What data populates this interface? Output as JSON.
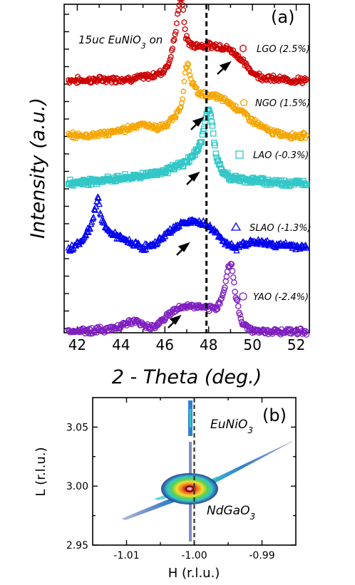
{
  "chart_data": [
    {
      "panel": "(a)",
      "type": "scatter",
      "annotation": {
        "prefix": "15uc EuNiO",
        "sub": "3",
        "suffix": " on"
      },
      "xlabel": "2 - Theta (deg.)",
      "ylabel": "Intensity (a.u.)",
      "xlim": [
        41.4,
        52.6
      ],
      "xticks": [
        "42",
        "44",
        "46",
        "48",
        "50",
        "52"
      ],
      "reference_line_x": 47.9,
      "grid": false,
      "legend_placement": "right, beside each curve",
      "series": [
        {
          "name": "LGO (2.5%)",
          "marker": "hexagon",
          "color": "#cc0000",
          "x": [
            41.6,
            42.5,
            43.5,
            44.5,
            45.3,
            45.9,
            46.2,
            46.45,
            46.65,
            46.78,
            46.95,
            47.2,
            47.6,
            48.0,
            48.4,
            48.9,
            49.3,
            49.7,
            50.1,
            50.6,
            51.2,
            51.8,
            52.4
          ],
          "y": [
            0.05,
            0.05,
            0.06,
            0.07,
            0.1,
            0.16,
            0.28,
            0.6,
            1.05,
            1.12,
            0.62,
            0.5,
            0.5,
            0.5,
            0.5,
            0.46,
            0.38,
            0.24,
            0.13,
            0.08,
            0.06,
            0.05,
            0.05
          ]
        },
        {
          "name": "NGO (1.5%)",
          "marker": "pentagon",
          "color": "#f5a500",
          "x": [
            41.6,
            42.5,
            43.5,
            44.2,
            44.8,
            45.3,
            45.7,
            46.1,
            46.5,
            46.8,
            46.95,
            47.05,
            47.2,
            47.5,
            47.9,
            48.4,
            48.9,
            49.4,
            49.9,
            50.4,
            51.0,
            51.6,
            52.4
          ],
          "y": [
            0.05,
            0.06,
            0.09,
            0.14,
            0.2,
            0.19,
            0.15,
            0.2,
            0.32,
            0.52,
            0.95,
            1.0,
            0.8,
            0.62,
            0.6,
            0.57,
            0.5,
            0.4,
            0.28,
            0.17,
            0.09,
            0.06,
            0.05
          ]
        },
        {
          "name": "LAO (-0.3%)",
          "marker": "square",
          "color": "#33c7c7",
          "x": [
            41.6,
            42.5,
            43.5,
            44.5,
            45.5,
            46.3,
            46.9,
            47.4,
            47.7,
            47.9,
            48.05,
            48.15,
            48.35,
            48.6,
            49.0,
            49.5,
            50.2,
            51.0,
            51.8,
            52.4
          ],
          "y": [
            0.05,
            0.07,
            0.1,
            0.13,
            0.18,
            0.24,
            0.32,
            0.45,
            0.65,
            0.98,
            1.05,
            0.85,
            0.4,
            0.2,
            0.12,
            0.1,
            0.08,
            0.06,
            0.05,
            0.05
          ]
        },
        {
          "name": "SLAO (-1.3%)",
          "marker": "triangle",
          "color": "#0000ee",
          "x": [
            41.6,
            42.2,
            42.6,
            42.85,
            42.95,
            43.1,
            43.5,
            44.2,
            45.0,
            45.4,
            45.8,
            46.3,
            46.8,
            47.3,
            47.9,
            48.4,
            48.8,
            49.2,
            49.6,
            50.2,
            51.0,
            51.8,
            52.4
          ],
          "y": [
            0.05,
            0.18,
            0.38,
            0.7,
            0.85,
            0.48,
            0.3,
            0.18,
            0.08,
            0.1,
            0.2,
            0.34,
            0.44,
            0.46,
            0.42,
            0.28,
            0.14,
            0.06,
            0.14,
            0.16,
            0.12,
            0.1,
            0.08
          ]
        },
        {
          "name": "YAO (-2.4%)",
          "marker": "circle",
          "color": "#7f1fbf",
          "x": [
            41.6,
            42.5,
            43.5,
            44.2,
            44.7,
            45.1,
            45.5,
            46.0,
            46.5,
            47.0,
            47.5,
            48.0,
            48.4,
            48.7,
            48.9,
            49.05,
            49.2,
            49.5,
            50.0,
            50.8,
            51.6,
            52.4
          ],
          "y": [
            0.05,
            0.06,
            0.08,
            0.16,
            0.19,
            0.13,
            0.11,
            0.24,
            0.36,
            0.4,
            0.4,
            0.36,
            0.38,
            0.62,
            0.95,
            1.0,
            0.6,
            0.18,
            0.06,
            0.05,
            0.05,
            0.05
          ]
        }
      ]
    },
    {
      "panel": "(b)",
      "type": "heatmap",
      "xlabel": "H (r.l.u.)",
      "ylabel": "L (r.l.u.)",
      "xlim": [
        -1.015,
        -0.985
      ],
      "ylim": [
        2.95,
        3.075
      ],
      "xticks": [
        "-1.01",
        "-1.00",
        "-0.99"
      ],
      "yticks": [
        "2.95",
        "3.00",
        "3.05"
      ],
      "reference_line_x": -1.0,
      "grid": false,
      "labels": [
        {
          "text": "EuNiO",
          "sub": "3"
        },
        {
          "text": "NdGaO",
          "sub": "3"
        }
      ],
      "features": [
        {
          "name": "EuNiO3 film peak",
          "h": -1.0,
          "l": 3.052
        },
        {
          "name": "NdGaO3 substrate peak",
          "h": -1.0,
          "l": 2.997
        }
      ],
      "colors": [
        "#1c2f8f",
        "#2f7fd0",
        "#33c7c7",
        "#5fcf4f",
        "#f0e030",
        "#f08020",
        "#d01010",
        "#ffffff"
      ]
    }
  ]
}
